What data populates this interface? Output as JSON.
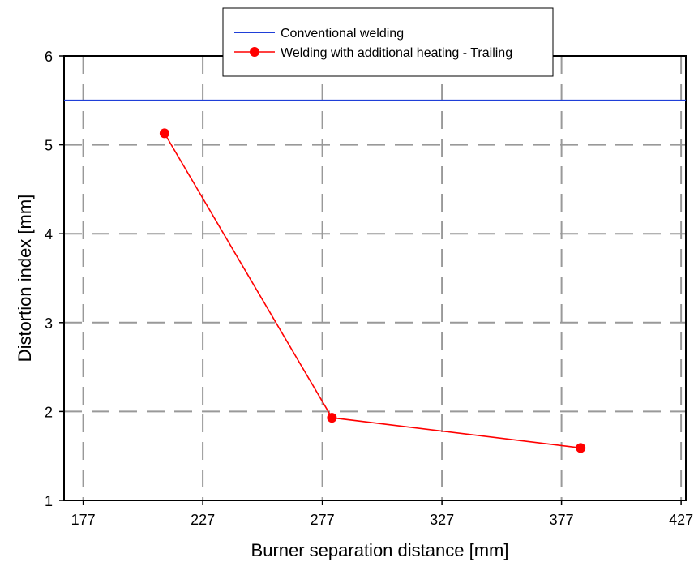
{
  "chart_data": {
    "type": "line",
    "xlabel": "Burner separation distance [mm]",
    "ylabel": "Distortion index [mm]",
    "xlim": [
      169,
      429
    ],
    "ylim": [
      1,
      6
    ],
    "xticks": [
      177,
      227,
      277,
      327,
      377,
      427
    ],
    "yticks": [
      1,
      2,
      3,
      4,
      5,
      6
    ],
    "grid": true,
    "legend_position": "top-center",
    "series": [
      {
        "name": "Conventional welding",
        "color": "#1f3fd8",
        "marker": "none",
        "x": [
          169,
          429
        ],
        "y": [
          5.5,
          5.5
        ]
      },
      {
        "name": "Welding with additional heating - Trailing",
        "color": "#ff0000",
        "marker": "circle",
        "x": [
          211,
          281,
          385
        ],
        "y": [
          5.13,
          1.93,
          1.59
        ]
      }
    ]
  }
}
